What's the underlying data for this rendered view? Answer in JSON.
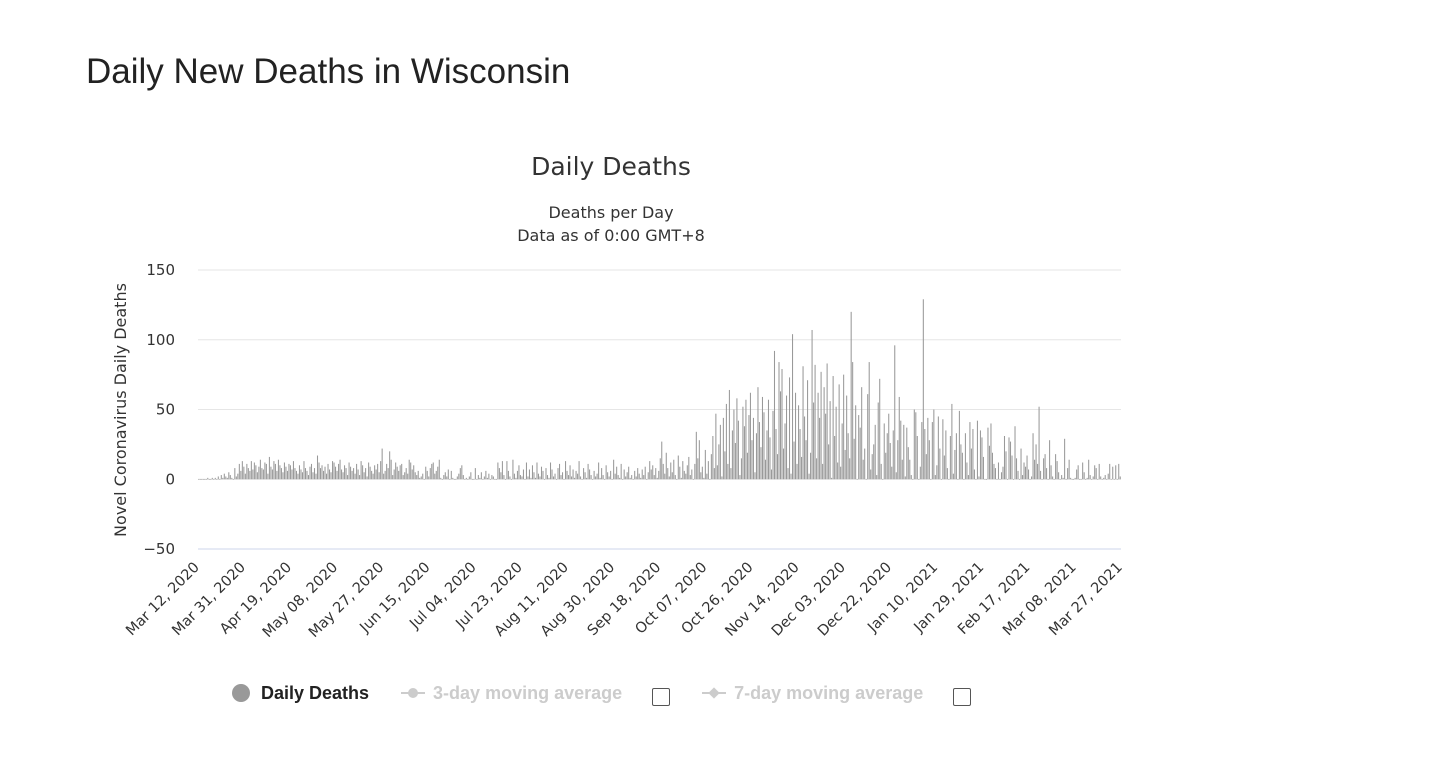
{
  "page": {
    "title": "Daily New Deaths in Wisconsin"
  },
  "legend": {
    "daily_label": "Daily Deaths",
    "avg3_label": "3-day moving average",
    "avg7_label": "7-day moving average"
  },
  "colors": {
    "bars": "#999999",
    "grid": "#e6e6e6",
    "axis_line": "#ccd6eb",
    "text": "#333333",
    "inactive": "#cccccc"
  },
  "chart_data": {
    "type": "bar",
    "title": "Daily Deaths",
    "subtitle_lines": [
      "Deaths per Day",
      "Data as of 0:00 GMT+8"
    ],
    "ylabel": "Novel Coronavirus Daily Deaths",
    "xlabel": "",
    "ylim": [
      -50,
      150
    ],
    "yticks": [
      150,
      100,
      50,
      0,
      -50
    ],
    "grid": true,
    "legend_position": "bottom",
    "x_start": "Mar 12, 2020",
    "x_end": "Mar 31, 2021",
    "xticks": [
      "Mar 12, 2020",
      "Mar 31, 2020",
      "Apr 19, 2020",
      "May 08, 2020",
      "May 27, 2020",
      "Jun 15, 2020",
      "Jul 04, 2020",
      "Jul 23, 2020",
      "Aug 11, 2020",
      "Aug 30, 2020",
      "Sep 18, 2020",
      "Oct 07, 2020",
      "Oct 26, 2020",
      "Nov 14, 2020",
      "Dec 03, 2020",
      "Dec 22, 2020",
      "Jan 10, 2021",
      "Jan 29, 2021",
      "Feb 17, 2021",
      "Mar 08, 2021",
      "Mar 27, 2021"
    ],
    "series": [
      {
        "name": "Daily Deaths",
        "values": [
          0,
          0,
          0,
          0,
          0,
          0,
          1,
          0,
          0,
          1,
          0,
          1,
          0,
          2,
          0,
          3,
          1,
          4,
          2,
          1,
          5,
          3,
          1,
          0,
          8,
          2,
          4,
          11,
          6,
          13,
          9,
          4,
          11,
          8,
          6,
          13,
          7,
          12,
          10,
          5,
          9,
          14,
          8,
          7,
          12,
          11,
          4,
          16,
          9,
          7,
          13,
          11,
          6,
          14,
          10,
          8,
          5,
          12,
          9,
          6,
          11,
          10,
          7,
          13,
          8,
          6,
          4,
          10,
          7,
          5,
          13,
          8,
          6,
          3,
          9,
          11,
          5,
          8,
          4,
          17,
          12,
          8,
          10,
          6,
          9,
          4,
          11,
          7,
          5,
          13,
          12,
          9,
          6,
          11,
          14,
          7,
          5,
          10,
          8,
          3,
          12,
          9,
          6,
          8,
          4,
          11,
          7,
          3,
          13,
          10,
          5,
          8,
          2,
          12,
          9,
          6,
          4,
          10,
          7,
          11,
          5,
          13,
          22,
          4,
          6,
          11,
          8,
          20,
          14,
          3,
          7,
          12,
          9,
          6,
          10,
          11,
          3,
          5,
          8,
          4,
          14,
          12,
          7,
          10,
          5,
          3,
          6,
          1,
          2,
          4,
          0,
          9,
          6,
          2,
          8,
          11,
          12,
          4,
          6,
          9,
          14,
          1,
          0,
          3,
          5,
          2,
          7,
          0,
          6,
          1,
          0,
          0,
          2,
          4,
          8,
          10,
          3,
          0,
          1,
          0,
          2,
          5,
          0,
          0,
          8,
          0,
          3,
          1,
          5,
          0,
          2,
          6,
          1,
          4,
          0,
          3,
          2,
          0,
          0,
          12,
          8,
          5,
          13,
          3,
          0,
          13,
          6,
          2,
          0,
          14,
          4,
          1,
          6,
          10,
          3,
          2,
          7,
          0,
          12,
          2,
          7,
          1,
          10,
          5,
          1,
          12,
          4,
          2,
          9,
          6,
          0,
          8,
          3,
          1,
          12,
          7,
          2,
          4,
          0,
          8,
          11,
          3,
          5,
          0,
          13,
          6,
          3,
          10,
          2,
          7,
          1,
          6,
          4,
          13,
          2,
          0,
          8,
          5,
          1,
          11,
          7,
          3,
          0,
          6,
          2,
          4,
          12,
          1,
          8,
          3,
          0,
          10,
          5,
          2,
          6,
          0,
          14,
          4,
          9,
          3,
          1,
          11,
          0,
          7,
          2,
          5,
          9,
          1,
          3,
          0,
          6,
          2,
          8,
          4,
          1,
          7,
          3,
          9,
          0,
          5,
          13,
          7,
          10,
          3,
          8,
          1,
          6,
          15,
          27,
          11,
          4,
          19,
          8,
          2,
          12,
          5,
          14,
          3,
          0,
          17,
          9,
          1,
          13,
          6,
          4,
          10,
          16,
          3,
          7,
          0,
          11,
          34,
          15,
          28,
          5,
          9,
          1,
          21,
          4,
          13,
          0,
          18,
          31,
          8,
          47,
          10,
          25,
          39,
          2,
          44,
          20,
          54,
          11,
          64,
          8,
          35,
          50,
          26,
          58,
          42,
          3,
          15,
          52,
          38,
          57,
          19,
          46,
          62,
          28,
          44,
          5,
          33,
          66,
          41,
          23,
          59,
          48,
          14,
          35,
          57,
          30,
          7,
          49,
          92,
          36,
          18,
          84,
          63,
          79,
          22,
          40,
          60,
          8,
          73,
          4,
          104,
          27,
          62,
          11,
          53,
          36,
          16,
          81,
          45,
          28,
          71,
          4,
          19,
          107,
          55,
          82,
          15,
          62,
          44,
          77,
          11,
          66,
          47,
          83,
          25,
          56,
          1,
          74,
          31,
          52,
          12,
          68,
          9,
          40,
          75,
          21,
          60,
          33,
          15,
          120,
          84,
          29,
          53,
          0,
          46,
          37,
          66,
          14,
          22,
          0,
          61,
          84,
          7,
          18,
          25,
          39,
          3,
          55,
          72,
          11,
          0,
          40,
          19,
          33,
          47,
          26,
          9,
          35,
          96,
          5,
          28,
          59,
          42,
          14,
          39,
          2,
          37,
          23,
          14,
          3,
          0,
          50,
          48,
          31,
          0,
          9,
          41,
          129,
          36,
          18,
          44,
          28,
          0,
          41,
          50,
          3,
          10,
          45,
          22,
          0,
          43,
          17,
          35,
          8,
          0,
          31,
          54,
          4,
          21,
          33,
          0,
          49,
          25,
          19,
          0,
          33,
          12,
          3,
          41,
          22,
          36,
          7,
          0,
          42,
          2,
          35,
          30,
          16,
          0,
          0,
          37,
          24,
          40,
          19,
          11,
          8,
          0,
          12,
          0,
          5,
          9,
          31,
          20,
          0,
          30,
          27,
          17,
          0,
          38,
          15,
          6,
          0,
          22,
          3,
          12,
          9,
          17,
          7,
          0,
          2,
          33,
          14,
          25,
          11,
          52,
          6,
          0,
          15,
          18,
          8,
          0,
          28,
          10,
          2,
          0,
          18,
          13,
          5,
          0,
          3,
          1,
          29,
          0,
          8,
          14,
          1,
          0,
          0,
          1,
          7,
          10,
          0,
          0,
          12,
          5,
          0,
          1,
          14,
          3,
          0,
          2,
          10,
          8,
          0,
          11,
          2,
          0,
          1,
          3,
          0,
          4,
          11,
          0,
          9,
          0,
          10,
          0,
          11,
          2
        ]
      }
    ]
  }
}
